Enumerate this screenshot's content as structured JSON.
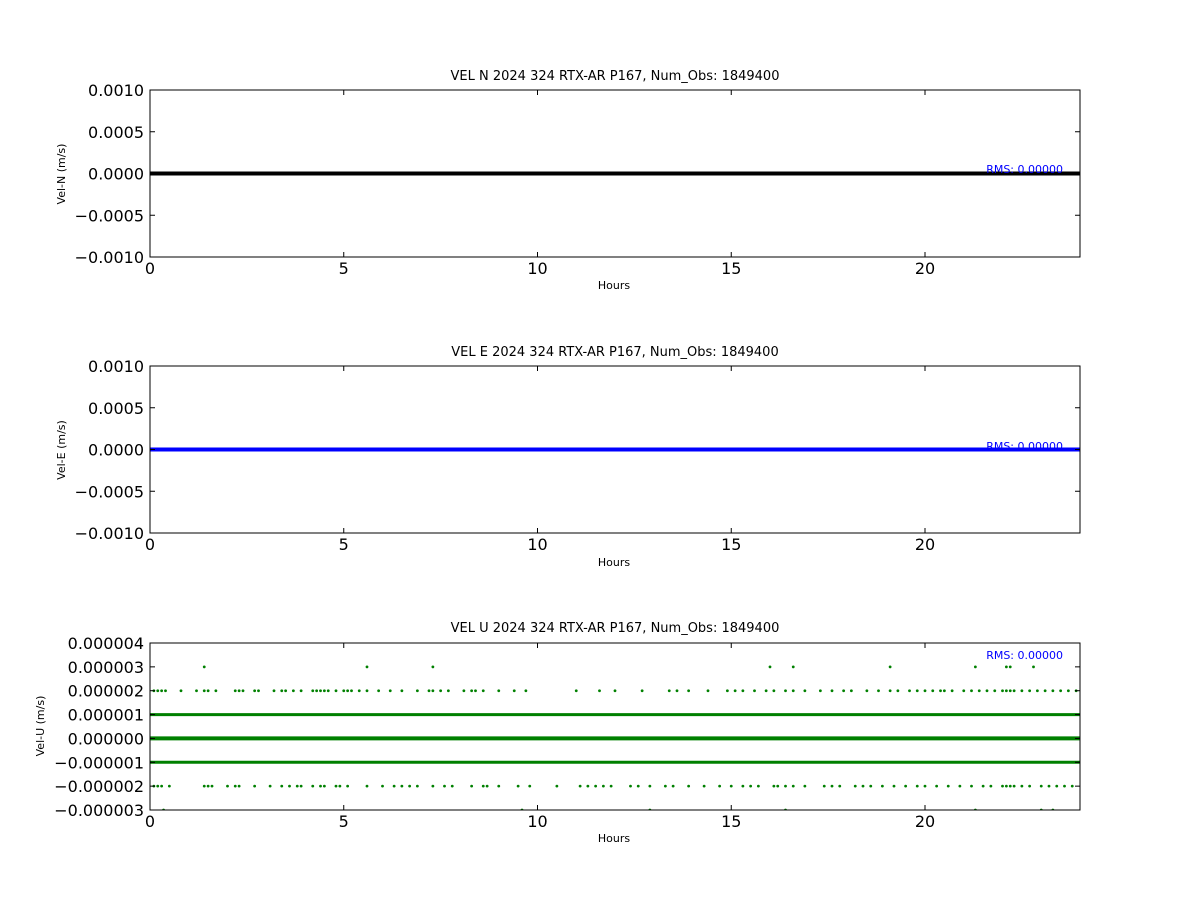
{
  "chart_data": [
    {
      "type": "line",
      "title": "VEL N 2024 324 RTX-AR  P167, Num_Obs: 1849400",
      "xlabel": "Hours",
      "ylabel": "Vel-N (m/s)",
      "xlim": [
        0,
        24
      ],
      "ylim": [
        -0.001,
        0.001
      ],
      "xticks": [
        0,
        5,
        10,
        15,
        20
      ],
      "xtick_labels": [
        "0",
        "5",
        "10",
        "15",
        "20"
      ],
      "yticks": [
        0.001,
        0.0005,
        0,
        -0.0005,
        -0.001
      ],
      "ytick_labels": [
        "0.0010",
        "0.0005",
        "0.0000",
        "−0.0005",
        "−0.0010"
      ],
      "grid": false,
      "annotation": "RMS:  0.00000",
      "annotation_color": "#0000ff",
      "series": [
        {
          "color": "#000000",
          "x": [
            0,
            24
          ],
          "y": [
            0,
            0
          ]
        }
      ]
    },
    {
      "type": "line",
      "title": "VEL E 2024 324 RTX-AR  P167, Num_Obs: 1849400",
      "xlabel": "Hours",
      "ylabel": "Vel-E (m/s)",
      "xlim": [
        0,
        24
      ],
      "ylim": [
        -0.001,
        0.001
      ],
      "xticks": [
        0,
        5,
        10,
        15,
        20
      ],
      "xtick_labels": [
        "0",
        "5",
        "10",
        "15",
        "20"
      ],
      "yticks": [
        0.001,
        0.0005,
        0,
        -0.0005,
        -0.001
      ],
      "ytick_labels": [
        "0.0010",
        "0.0005",
        "0.0000",
        "−0.0005",
        "−0.0010"
      ],
      "grid": false,
      "annotation": "RMS:  0.00000",
      "annotation_color": "#0000ff",
      "series": [
        {
          "color": "#0000ff",
          "x": [
            0,
            24
          ],
          "y": [
            0,
            0
          ]
        }
      ]
    },
    {
      "type": "scatter",
      "title": "VEL U 2024 324 RTX-AR  P167, Num_Obs: 1849400",
      "xlabel": "Hours",
      "ylabel": "Vel-U (m/s)",
      "xlim": [
        0,
        24
      ],
      "ylim": [
        -3e-06,
        4e-06
      ],
      "xticks": [
        0,
        5,
        10,
        15,
        20
      ],
      "xtick_labels": [
        "0",
        "5",
        "10",
        "15",
        "20"
      ],
      "yticks": [
        4e-06,
        3e-06,
        2e-06,
        1e-06,
        0,
        -1e-06,
        -2e-06,
        -3e-06
      ],
      "ytick_labels": [
        "0.000004",
        "0.000003",
        "0.000002",
        "0.000001",
        "0.000000",
        "−0.000001",
        "−0.000002",
        "−0.000003"
      ],
      "grid": false,
      "annotation": "RMS:  0.00000",
      "annotation_color": "#0000ff",
      "series": [
        {
          "color": "#008000",
          "dense_levels": [
            {
              "y": 0,
              "x_range": [
                0,
                24
              ]
            },
            {
              "y": 1e-06,
              "x_range": [
                0,
                24
              ]
            },
            {
              "y": -1e-06,
              "x_range": [
                0,
                24
              ]
            }
          ],
          "sparse_points": [
            {
              "y": 3e-06,
              "x": [
                1.4,
                5.6,
                7.3,
                16.0,
                16.6,
                19.1,
                21.3,
                22.1,
                22.2,
                22.8
              ]
            },
            {
              "y": 2e-06,
              "x": [
                0.1,
                0.2,
                0.3,
                0.4,
                0.8,
                1.2,
                1.4,
                1.5,
                1.7,
                2.2,
                2.3,
                2.4,
                2.7,
                2.8,
                3.2,
                3.4,
                3.5,
                3.7,
                3.9,
                4.2,
                4.3,
                4.4,
                4.5,
                4.6,
                4.8,
                5.0,
                5.1,
                5.2,
                5.4,
                5.6,
                5.9,
                6.2,
                6.5,
                6.9,
                7.2,
                7.3,
                7.5,
                7.7,
                8.1,
                8.3,
                8.4,
                8.6,
                9.0,
                9.4,
                9.7,
                11.0,
                11.6,
                12.0,
                12.7,
                13.4,
                13.6,
                13.9,
                14.4,
                14.9,
                15.1,
                15.3,
                15.6,
                15.9,
                16.1,
                16.4,
                16.6,
                16.9,
                17.3,
                17.6,
                17.9,
                18.1,
                18.5,
                18.8,
                19.1,
                19.3,
                19.6,
                19.8,
                20.0,
                20.2,
                20.4,
                20.5,
                20.7,
                21.0,
                21.2,
                21.4,
                21.6,
                21.8,
                22.0,
                22.1,
                22.2,
                22.3,
                22.5,
                22.7,
                22.9,
                23.1,
                23.3,
                23.5,
                23.7,
                23.9
              ]
            },
            {
              "y": -2e-06,
              "x": [
                0.1,
                0.2,
                0.3,
                0.5,
                1.4,
                1.5,
                1.6,
                2.0,
                2.2,
                2.3,
                2.7,
                3.1,
                3.4,
                3.6,
                3.8,
                3.9,
                4.2,
                4.4,
                4.5,
                4.8,
                4.9,
                5.1,
                5.6,
                6.0,
                6.3,
                6.5,
                6.7,
                6.9,
                7.3,
                7.6,
                7.8,
                8.3,
                8.6,
                8.7,
                9.0,
                9.5,
                9.8,
                10.5,
                11.1,
                11.3,
                11.5,
                11.7,
                11.9,
                12.4,
                12.6,
                12.9,
                13.3,
                13.5,
                13.9,
                14.3,
                14.7,
                15.0,
                15.3,
                15.5,
                15.7,
                16.1,
                16.2,
                16.4,
                16.6,
                16.9,
                17.4,
                17.6,
                17.8,
                18.2,
                18.4,
                18.6,
                18.9,
                19.2,
                19.5,
                19.8,
                20.0,
                20.3,
                20.6,
                20.9,
                21.2,
                21.5,
                21.7,
                22.0,
                22.1,
                22.2,
                22.3,
                22.5,
                22.7,
                23.0,
                23.2,
                23.4,
                23.6,
                23.8
              ]
            },
            {
              "y": -3e-06,
              "x": [
                0.35,
                9.6,
                12.9,
                16.4,
                21.3,
                23.0,
                23.3
              ]
            }
          ]
        }
      ]
    }
  ]
}
